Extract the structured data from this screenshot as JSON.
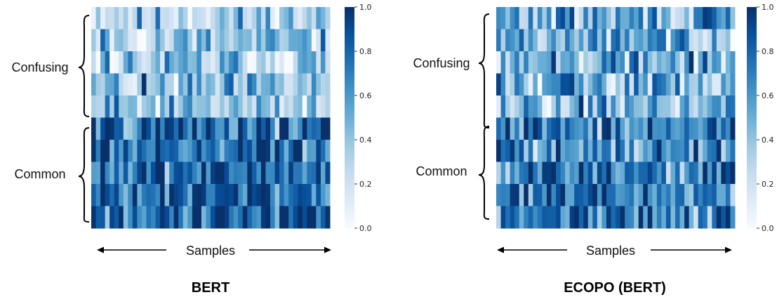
{
  "chart_data": [
    {
      "type": "heatmap",
      "title": "BERT",
      "xlabel": "Samples",
      "row_groups": [
        "Confusing",
        "Common"
      ],
      "rows": 10,
      "cols": 52,
      "colorbar": {
        "ticks": [
          "0.0",
          "0.2",
          "0.4",
          "0.6",
          "0.8",
          "1.0"
        ],
        "range": [
          0,
          1
        ],
        "colormap": "Blues"
      },
      "confusing_mean": 0.35,
      "common_mean": 0.8
    },
    {
      "type": "heatmap",
      "title": "ECOPO (BERT)",
      "xlabel": "Samples",
      "row_groups": [
        "Confusing",
        "Common"
      ],
      "rows": 10,
      "cols": 52,
      "colorbar": {
        "ticks": [
          "0.0",
          "0.2",
          "0.4",
          "0.6",
          "0.8",
          "1.0"
        ],
        "range": [
          0,
          1
        ],
        "colormap": "Blues"
      },
      "confusing_mean": 0.5,
      "common_mean": 0.7
    }
  ],
  "colors": {
    "low": "#f7fbff",
    "mid": "#6baed6",
    "high": "#08306b",
    "text": "#111111"
  }
}
